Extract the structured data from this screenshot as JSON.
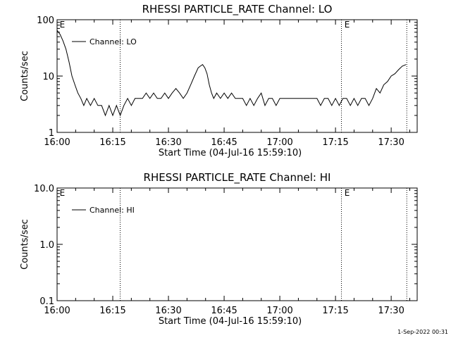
{
  "colors": {
    "background": "#ffffff",
    "foreground": "#000000"
  },
  "footer": {
    "timestamp": "1-Sep-2022 00:31"
  },
  "chart_data": [
    {
      "type": "line",
      "title": "RHESSI PARTICLE_RATE Channel: LO",
      "xlabel": "Start Time (04-Jul-16 15:59:10)",
      "ylabel": "Counts/sec",
      "xlim_minutes": [
        0,
        97
      ],
      "ylim": [
        1,
        100
      ],
      "yscale": "log",
      "x_ticks": [
        {
          "minute": 0,
          "label": "16:00"
        },
        {
          "minute": 15,
          "label": "16:15"
        },
        {
          "minute": 30,
          "label": "16:30"
        },
        {
          "minute": 45,
          "label": "16:45"
        },
        {
          "minute": 60,
          "label": "17:00"
        },
        {
          "minute": 75,
          "label": "17:15"
        },
        {
          "minute": 90,
          "label": "17:30"
        }
      ],
      "y_ticks": [
        {
          "value": 1,
          "label": "1"
        },
        {
          "value": 10,
          "label": "10"
        },
        {
          "value": 100,
          "label": "100"
        }
      ],
      "event_lines_minutes": [
        17.0,
        76.6,
        94.2
      ],
      "event_markers": [
        {
          "minute": 0.5,
          "label": "E"
        },
        {
          "minute": 77.2,
          "label": "E"
        }
      ],
      "legend": {
        "position": "top-left",
        "label": "Channel: LO"
      },
      "series": [
        {
          "name": "Channel: LO",
          "x_minutes": [
            0.0,
            0.8,
            1.6,
            2.4,
            3.2,
            4.0,
            4.8,
            5.6,
            6.4,
            7.2,
            8.0,
            9.0,
            10.0,
            11.0,
            12.0,
            13.0,
            14.0,
            15.0,
            16.0,
            17.0,
            18.0,
            19.0,
            20.0,
            21.0,
            22.0,
            23.0,
            24.0,
            25.0,
            26.0,
            27.0,
            28.0,
            29.0,
            30.0,
            31.0,
            32.0,
            33.0,
            34.0,
            35.0,
            36.0,
            37.0,
            38.0,
            38.6,
            39.2,
            39.8,
            40.4,
            41.0,
            41.6,
            42.2,
            43.0,
            44.0,
            45.0,
            46.0,
            47.0,
            48.0,
            49.0,
            50.0,
            51.0,
            52.0,
            53.0,
            54.0,
            55.0,
            56.0,
            57.0,
            58.0,
            59.0,
            60.0,
            61.0,
            62.0,
            63.0,
            64.0,
            65.0,
            66.0,
            67.0,
            68.0,
            69.0,
            70.0,
            71.0,
            72.0,
            73.0,
            74.0,
            75.0,
            76.0,
            77.0,
            78.0,
            79.0,
            80.0,
            81.0,
            82.0,
            83.0,
            84.0,
            85.0,
            86.0,
            87.0,
            88.0,
            89.0,
            90.0,
            91.0,
            92.0,
            93.0,
            94.0
          ],
          "values": [
            65,
            55,
            42,
            30,
            18,
            10,
            7,
            5,
            4,
            3,
            4,
            3,
            4,
            3,
            3,
            2,
            3,
            2,
            3,
            2,
            3,
            4,
            3,
            4,
            4,
            4,
            5,
            4,
            5,
            4,
            4,
            5,
            4,
            5,
            6,
            5,
            4,
            5,
            7,
            10,
            14,
            15,
            16,
            14,
            11,
            7,
            5,
            4,
            5,
            4,
            5,
            4,
            5,
            4,
            4,
            4,
            3,
            4,
            3,
            4,
            5,
            3,
            4,
            4,
            3,
            4,
            4,
            4,
            4,
            4,
            4,
            4,
            4,
            4,
            4,
            4,
            3,
            4,
            4,
            3,
            4,
            3,
            4,
            4,
            3,
            4,
            3,
            4,
            4,
            3,
            4,
            6,
            5,
            7,
            8,
            10,
            11,
            13,
            15,
            16
          ]
        }
      ]
    },
    {
      "type": "line",
      "title": "RHESSI PARTICLE_RATE Channel: HI",
      "xlabel": "Start Time (04-Jul-16 15:59:10)",
      "ylabel": "Counts/sec",
      "xlim_minutes": [
        0,
        97
      ],
      "ylim": [
        0.1,
        10
      ],
      "yscale": "log",
      "x_ticks": [
        {
          "minute": 0,
          "label": "16:00"
        },
        {
          "minute": 15,
          "label": "16:15"
        },
        {
          "minute": 30,
          "label": "16:30"
        },
        {
          "minute": 45,
          "label": "16:45"
        },
        {
          "minute": 60,
          "label": "17:00"
        },
        {
          "minute": 75,
          "label": "17:15"
        },
        {
          "minute": 90,
          "label": "17:30"
        }
      ],
      "y_ticks": [
        {
          "value": 0.1,
          "label": "0.1"
        },
        {
          "value": 1,
          "label": "1.0"
        },
        {
          "value": 10,
          "label": "10.0"
        }
      ],
      "event_lines_minutes": [
        17.0,
        76.6,
        94.2
      ],
      "event_markers": [
        {
          "minute": 0.5,
          "label": "E"
        },
        {
          "minute": 77.2,
          "label": "E"
        }
      ],
      "legend": {
        "position": "top-left",
        "label": "Channel: HI"
      },
      "series": [
        {
          "name": "Channel: HI",
          "x_minutes": [],
          "values": []
        }
      ]
    }
  ]
}
